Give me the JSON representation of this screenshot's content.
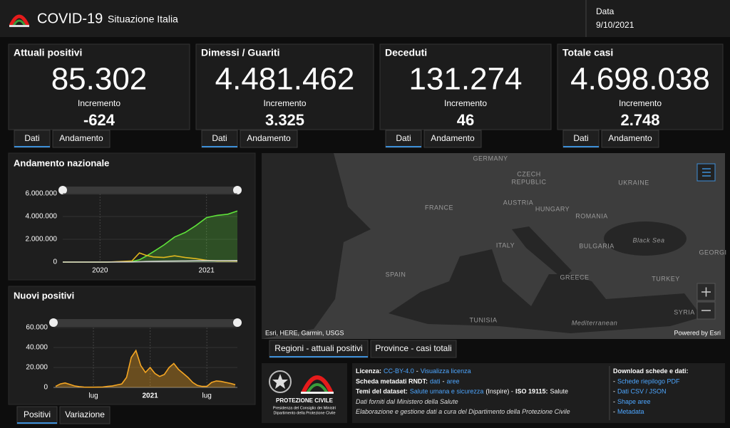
{
  "header": {
    "title": "COVID-19",
    "subtitle": "Situazione Italia",
    "date_label": "Data",
    "date": "9/10/2021"
  },
  "cards": [
    {
      "title": "Attuali positivi",
      "value": "85.302",
      "increment_label": "Incremento",
      "increment": "-624",
      "color": "#f5a623",
      "tabs": [
        "Dati",
        "Andamento"
      ]
    },
    {
      "title": "Dimessi / Guariti",
      "value": "4.481.462",
      "increment_label": "Incremento",
      "increment": "3.325",
      "color": "#5fe33a",
      "tabs": [
        "Dati",
        "Andamento"
      ]
    },
    {
      "title": "Deceduti",
      "value": "131.274",
      "increment_label": "Incremento",
      "increment": "46",
      "color": "#bdbdbd",
      "tabs": [
        "Dati",
        "Andamento"
      ]
    },
    {
      "title": "Totale casi",
      "value": "4.698.038",
      "increment_label": "Incremento",
      "increment": "2.748",
      "color": "#e51b1b",
      "tabs": [
        "Dati",
        "Andamento"
      ]
    }
  ],
  "chart_data": [
    {
      "type": "line",
      "title": "Andamento nazionale",
      "x": [
        2019.65,
        2019.87,
        2020.07,
        2020.3,
        2020.37,
        2020.43,
        2020.5,
        2020.6,
        2020.7,
        2020.8,
        2020.9,
        2021.0,
        2021.1,
        2021.2,
        2021.29
      ],
      "xlim": [
        2019.65,
        2021.29
      ],
      "xticks": [
        2020,
        2021
      ],
      "ylim": [
        0,
        6000000
      ],
      "yticks": [
        0,
        {
          "value": 2000000,
          "label": "2.000.000"
        },
        {
          "value": 4000000,
          "label": "4.000.000"
        },
        {
          "value": 6000000,
          "label": "6.000.000"
        }
      ],
      "grid": true,
      "series": [
        {
          "color": "#5fe33a",
          "fill": true,
          "values": [
            0,
            0,
            0,
            50000,
            200000,
            500000,
            900000,
            1500000,
            2200000,
            2600000,
            3200000,
            3900000,
            4100000,
            4200000,
            4480000
          ]
        },
        {
          "color": "#e0b81e",
          "values": [
            0,
            0,
            0,
            100000,
            800000,
            600000,
            450000,
            400000,
            550000,
            400000,
            300000,
            150000,
            100000,
            100000,
            90000
          ]
        },
        {
          "color": "#cfcfcf",
          "values": [
            0,
            0,
            0,
            10000,
            30000,
            50000,
            70000,
            80000,
            90000,
            100000,
            110000,
            120000,
            125000,
            128000,
            131000
          ]
        }
      ]
    },
    {
      "type": "area",
      "title": "Nuovi positivi",
      "categories": [
        null,
        null,
        null,
        null,
        null,
        null,
        null,
        null,
        "lug",
        null,
        null,
        null,
        null,
        null,
        null,
        null,
        null,
        null,
        null,
        null,
        "2021",
        null,
        null,
        null,
        null,
        null,
        null,
        null,
        null,
        null,
        null,
        null,
        "lug",
        null,
        null,
        null,
        null,
        null,
        null
      ],
      "values": [
        1000,
        3500,
        4500,
        3000,
        1500,
        800,
        300,
        200,
        200,
        300,
        400,
        1000,
        1500,
        2500,
        3500,
        10000,
        30000,
        37000,
        22000,
        15000,
        20000,
        14000,
        11000,
        13000,
        20000,
        24000,
        18000,
        14000,
        10000,
        5000,
        2000,
        1000,
        1000,
        5000,
        6500,
        6000,
        5000,
        4000,
        2700
      ],
      "color": "#f5a623",
      "ylim": [
        0,
        60000
      ],
      "yticks": [
        0,
        {
          "value": 20000,
          "label": "20.000"
        },
        {
          "value": 40000,
          "label": "40.000"
        },
        {
          "value": 60000,
          "label": "60.000"
        }
      ],
      "grid": true
    }
  ],
  "chart_tabs": [
    "Positivi",
    "Variazione"
  ],
  "map": {
    "labels": [
      "GERMANY",
      "CZECH",
      "REPUBLIC",
      "UKRAINE",
      "FRANCE",
      "AUSTRIA",
      "HUNGARY",
      "ROMANIA",
      "ITALY",
      "BULGARIA",
      "Black Sea",
      "GEORGI",
      "SPAIN",
      "GREECE",
      "TURKEY",
      "TUNISIA",
      "SYRIA",
      "Mediterranean"
    ],
    "attribution": "Esri, HERE, Garmin, USGS",
    "powered": "Powered by Esri",
    "tabs": [
      "Regioni - attuali positivi",
      "Province - casi totali"
    ]
  },
  "footer": {
    "logo_text": [
      "PROTEZIONE CIVILE",
      "Presidenza del Consiglio dei Ministri",
      "Dipartimento della Protezione Civile"
    ],
    "info": [
      [
        {
          "text": "Licenza:",
          "style": "bold"
        },
        {
          "text": "CC-BY-4.0",
          "style": "link"
        },
        {
          "text": "-"
        },
        {
          "text": "Visualizza licenza",
          "style": "link"
        }
      ],
      [
        {
          "text": "Scheda metadati RNDT:",
          "style": "bold"
        },
        {
          "text": "dati",
          "style": "link"
        },
        {
          "text": "-"
        },
        {
          "text": "aree",
          "style": "link"
        }
      ],
      [
        {
          "text": "Temi del dataset:",
          "style": "bold"
        },
        {
          "text": "Salute umana e sicurezza",
          "style": "link"
        },
        {
          "text": "(Inspire) -"
        },
        {
          "text": "ISO 19115:",
          "style": "bold"
        },
        {
          "text": "Salute"
        }
      ],
      [
        {
          "text": "Dati forniti dal Ministero della Salute",
          "style": "italic"
        }
      ],
      [
        {
          "text": "Elaborazione e gestione dati a cura del Dipartimento della Protezione Civile",
          "style": "italic"
        }
      ]
    ],
    "download": [
      [
        {
          "text": "Download schede e dati:",
          "style": "bold"
        }
      ],
      [
        {
          "text": "-"
        },
        {
          "text": "Schede riepilogo PDF",
          "style": "link"
        }
      ],
      [
        {
          "text": "-"
        },
        {
          "text": "Dati CSV / JSON",
          "style": "link"
        }
      ],
      [
        {
          "text": "-"
        },
        {
          "text": "Shape aree",
          "style": "link"
        }
      ],
      [
        {
          "text": "-"
        },
        {
          "text": "Metadata",
          "style": "link"
        }
      ]
    ]
  }
}
